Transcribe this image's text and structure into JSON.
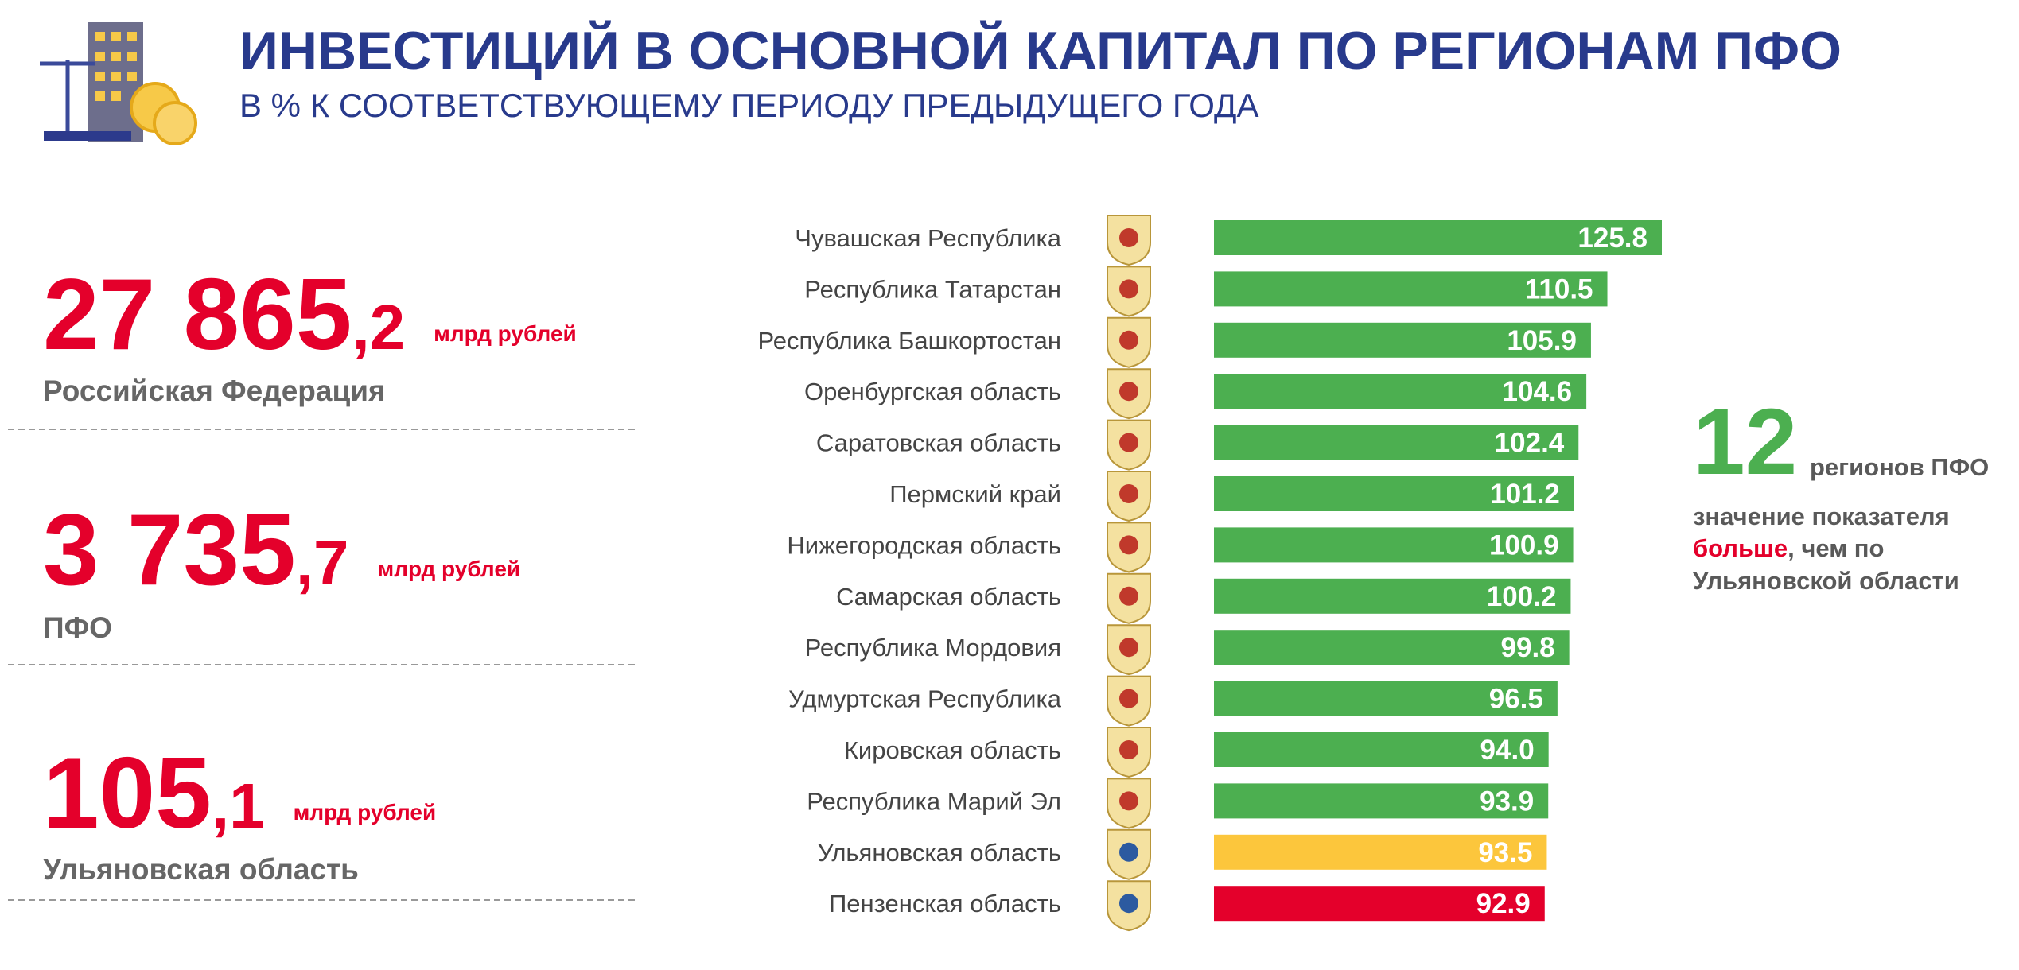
{
  "header": {
    "title": "ИНВЕСТИЦИЙ В ОСНОВНОЙ КАПИТАЛ ПО РЕГИОНАМ ПФО",
    "subtitle": "В % К СООТВЕТСТВУЮЩЕМУ ПЕРИОДУ ПРЕДЫДУЩЕГО ГОДА"
  },
  "stats": [
    {
      "integer": "27 865",
      "fraction": ",2",
      "unit": "млрд рублей",
      "label": "Российская Федерация"
    },
    {
      "integer": "3 735",
      "fraction": ",7",
      "unit": "млрд рублей",
      "label": "ПФО"
    },
    {
      "integer": "105",
      "fraction": ",1",
      "unit": "млрд рублей",
      "label": "Ульяновская область"
    }
  ],
  "chart_data": {
    "type": "hbar",
    "categories": [
      "Чувашская Республика",
      "Республика Татарстан",
      "Республика Башкортостан",
      "Оренбургская область",
      "Саратовская область",
      "Пермский край",
      "Нижегородская область",
      "Самарская область",
      "Республика Мордовия",
      "Удмуртская Республика",
      "Кировская область",
      "Республика Марий Эл",
      "Ульяновская область",
      "Пензенская область"
    ],
    "values": [
      125.8,
      110.5,
      105.9,
      104.6,
      102.4,
      101.2,
      100.9,
      100.2,
      99.8,
      96.5,
      94.0,
      93.9,
      93.5,
      92.9
    ],
    "value_labels": [
      "125.8",
      "110.5",
      "105.9",
      "104.6",
      "102.4",
      "101.2",
      "100.9",
      "100.2",
      "99.8",
      "96.5",
      "94.0",
      "93.9",
      "93.5",
      "92.9"
    ],
    "colors": [
      "#4caf50",
      "#4caf50",
      "#4caf50",
      "#4caf50",
      "#4caf50",
      "#4caf50",
      "#4caf50",
      "#4caf50",
      "#4caf50",
      "#4caf50",
      "#4caf50",
      "#4caf50",
      "#fcc63c",
      "#e4002b"
    ]
  },
  "note": {
    "count": "12",
    "count_label": "регионов ПФО",
    "line1": "значение показателя",
    "emphasis": "больше",
    "line2_rest": ", чем по",
    "line3": "Ульяновской области"
  }
}
